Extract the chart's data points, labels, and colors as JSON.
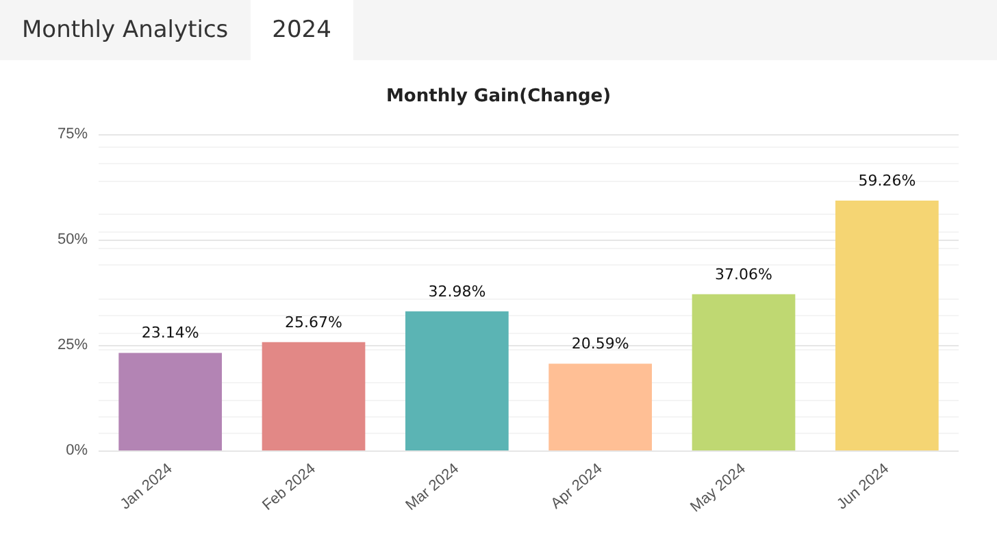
{
  "chart_data": {
    "type": "bar",
    "title": "Monthly Gain(Change)",
    "annotations": [
      "Monthly Analytics",
      "2024"
    ],
    "categories": [
      "Jan 2024",
      "Feb 2024",
      "Mar 2024",
      "Apr 2024",
      "May 2024",
      "Jun 2024"
    ],
    "values": [
      23.14,
      25.67,
      32.98,
      20.59,
      37.06,
      59.26
    ],
    "colors": [
      "#b384b4",
      "#e28886",
      "#5bb4b4",
      "#ffbf95",
      "#bfd872",
      "#f5d573"
    ],
    "value_labels": [
      "23.14%",
      "25.67%",
      "32.98%",
      "20.59%",
      "37.06%",
      "59.26%"
    ],
    "ylim": [
      0,
      75
    ],
    "yticks": [
      {
        "value": 0,
        "label": "0%"
      },
      {
        "value": 25,
        "label": "25%"
      },
      {
        "value": 50,
        "label": "50%"
      },
      {
        "value": 75,
        "label": "75%"
      }
    ],
    "grid": "y"
  }
}
